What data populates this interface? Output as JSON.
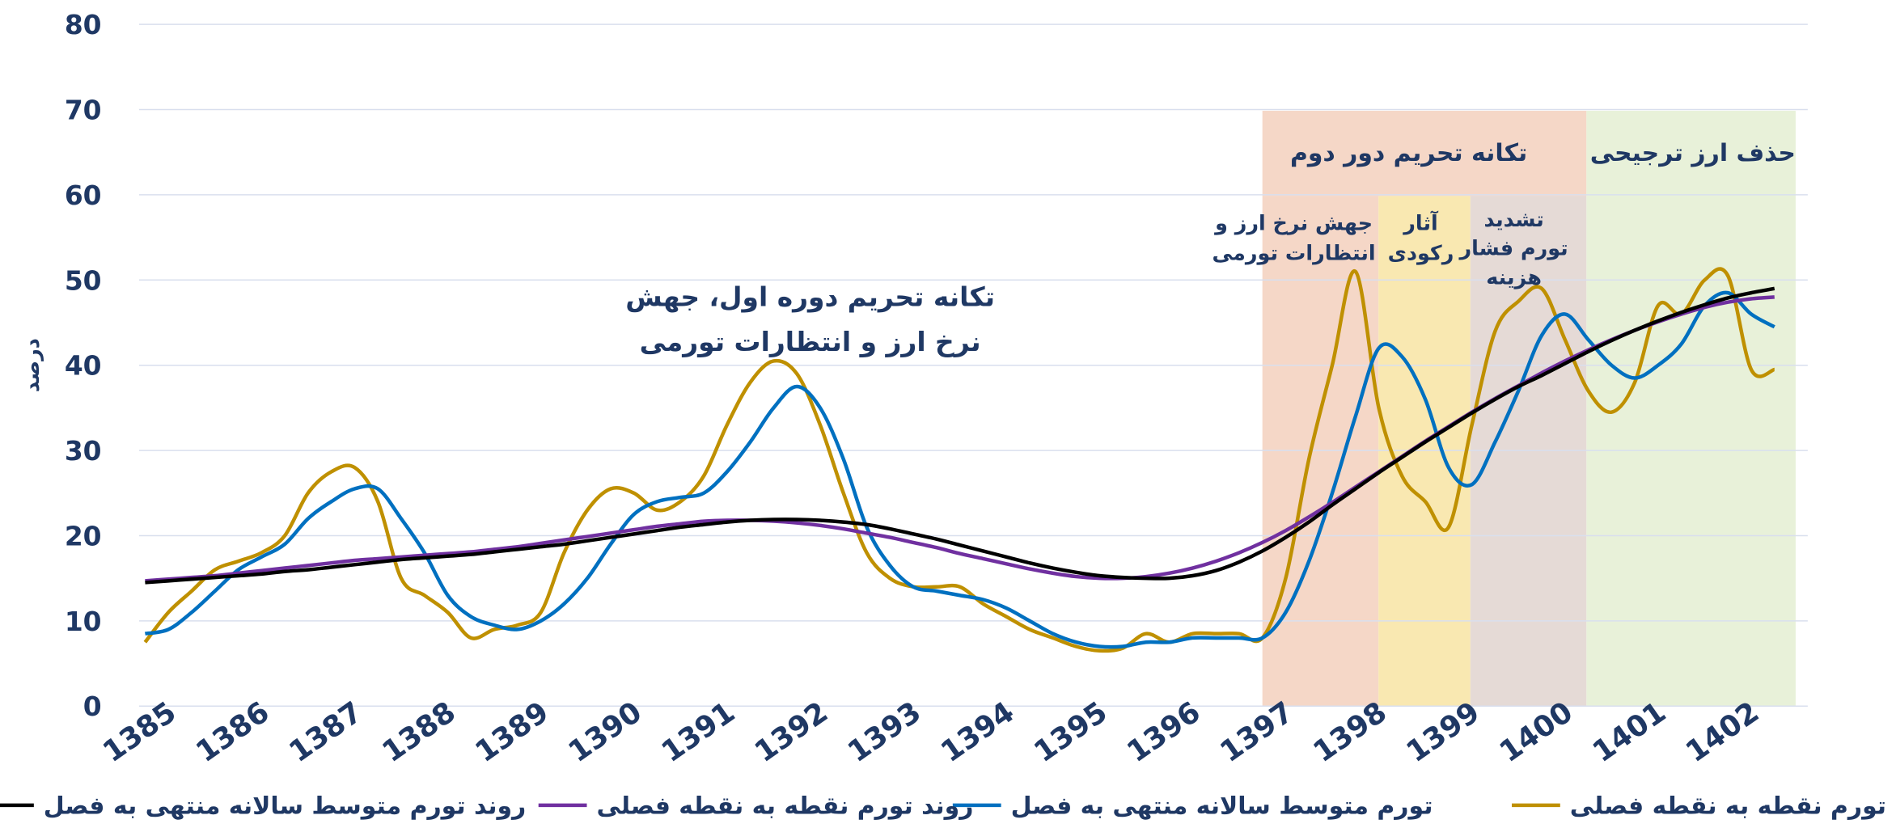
{
  "chart_data": {
    "type": "line",
    "y_label": "درصد",
    "ylim": [
      0,
      80
    ],
    "yticks": [
      0,
      10,
      20,
      30,
      40,
      50,
      60,
      70,
      80
    ],
    "grid": true,
    "legend_position": "bottom",
    "categories": [
      "1385",
      null,
      null,
      null,
      "1386",
      null,
      null,
      null,
      "1387",
      null,
      null,
      null,
      "1388",
      null,
      null,
      null,
      "1389",
      null,
      null,
      null,
      "1390",
      null,
      null,
      null,
      "1391",
      null,
      null,
      null,
      "1392",
      null,
      null,
      null,
      "1393",
      null,
      null,
      null,
      "1394",
      null,
      null,
      null,
      "1395",
      null,
      null,
      null,
      "1396",
      null,
      null,
      null,
      "1397",
      null,
      null,
      null,
      "1398",
      null,
      null,
      null,
      "1399",
      null,
      null,
      null,
      "1400",
      null,
      null,
      null,
      "1401",
      null,
      null,
      null,
      "1402",
      null,
      null
    ],
    "series": [
      {
        "name": "تورم نقطه به نقطه فصلی",
        "color": "#bf9000",
        "values": [
          7.5,
          11,
          13.5,
          16,
          17,
          18,
          20,
          25,
          27.5,
          28,
          24,
          15,
          13,
          11,
          8,
          9,
          9.5,
          11,
          18,
          23,
          25.5,
          25,
          23,
          24,
          27,
          33,
          38,
          40.5,
          39,
          33,
          25,
          18,
          15,
          14,
          14,
          14,
          12,
          10.5,
          9,
          8,
          7,
          6.5,
          6.8,
          8.5,
          7.5,
          8.5,
          8.5,
          8.5,
          8,
          15,
          29,
          40,
          51,
          35,
          27,
          24,
          21,
          33,
          44,
          47.5,
          49,
          43,
          37,
          34.5,
          38,
          47,
          46,
          50,
          50.5,
          39.5,
          39.5
        ]
      },
      {
        "name": "تورم متوسط سالانه منتهی به فصل",
        "color": "#0070c0",
        "values": [
          8.5,
          9,
          11,
          13.5,
          16,
          17.5,
          19,
          22,
          24,
          25.5,
          25.5,
          22,
          18,
          13,
          10.5,
          9.5,
          9,
          10,
          12,
          15,
          19,
          22.5,
          24,
          24.5,
          25,
          27.5,
          31,
          35,
          37.5,
          35,
          29,
          21,
          16.5,
          14,
          13.5,
          13,
          12.5,
          11.5,
          10,
          8.5,
          7.5,
          7,
          7,
          7.5,
          7.5,
          8,
          8,
          8,
          8,
          11,
          17,
          25,
          34,
          42,
          41,
          36,
          28,
          26,
          31,
          37,
          43.5,
          46,
          43,
          40,
          38.5,
          40,
          42.5,
          47,
          48.5,
          46,
          44.5
        ]
      },
      {
        "name": "روند تورم نقطه به نقطه فصلی",
        "color": "#7030a0",
        "values": [
          14.7,
          14.9,
          15.1,
          15.3,
          15.6,
          15.9,
          16.2,
          16.5,
          16.8,
          17.1,
          17.3,
          17.5,
          17.7,
          17.9,
          18.1,
          18.4,
          18.7,
          19.1,
          19.5,
          19.9,
          20.3,
          20.7,
          21.1,
          21.4,
          21.7,
          21.8,
          21.8,
          21.7,
          21.5,
          21.2,
          20.8,
          20.3,
          19.8,
          19.2,
          18.6,
          17.9,
          17.3,
          16.7,
          16.1,
          15.6,
          15.2,
          15,
          15,
          15.2,
          15.6,
          16.2,
          17,
          18,
          19.2,
          20.6,
          22.2,
          23.9,
          25.7,
          27.5,
          29.3,
          31.1,
          32.8,
          34.5,
          36.1,
          37.6,
          39.1,
          40.5,
          41.8,
          43,
          44.1,
          45.1,
          46,
          46.8,
          47.4,
          47.8,
          48
        ]
      },
      {
        "name": "روند تورم متوسط سالانه منتهی به فصل",
        "color": "#000000",
        "values": [
          14.5,
          14.7,
          14.9,
          15.1,
          15.3,
          15.5,
          15.8,
          16,
          16.3,
          16.6,
          16.9,
          17.2,
          17.4,
          17.6,
          17.8,
          18.1,
          18.4,
          18.7,
          19,
          19.4,
          19.8,
          20.2,
          20.6,
          21,
          21.3,
          21.6,
          21.8,
          21.9,
          21.9,
          21.8,
          21.6,
          21.3,
          20.8,
          20.2,
          19.6,
          18.9,
          18.2,
          17.5,
          16.8,
          16.2,
          15.7,
          15.3,
          15.1,
          15,
          15,
          15.3,
          15.9,
          16.9,
          18.2,
          19.8,
          21.6,
          23.6,
          25.5,
          27.4,
          29.2,
          31,
          32.7,
          34.4,
          36,
          37.5,
          38.8,
          40.2,
          41.6,
          42.9,
          44.1,
          45.2,
          46.2,
          47.1,
          47.9,
          48.5,
          49
        ]
      }
    ],
    "annotations": {
      "first_sanction": [
        "تکانه تحریم دوره اول، جهش",
        "نرخ ارز و انتظارات تورمی"
      ],
      "second_sanction": "تکانه تحریم دور دوم",
      "fx_jump": [
        "جهش نرخ ارز و",
        "انتظارات تورمی"
      ],
      "recession": [
        "آثار",
        "رکودی"
      ],
      "cost_push": [
        "تشدید",
        "تورم فشار",
        "هزینه"
      ],
      "subsidy_removal": "حذف ارز ترجیحی"
    }
  }
}
